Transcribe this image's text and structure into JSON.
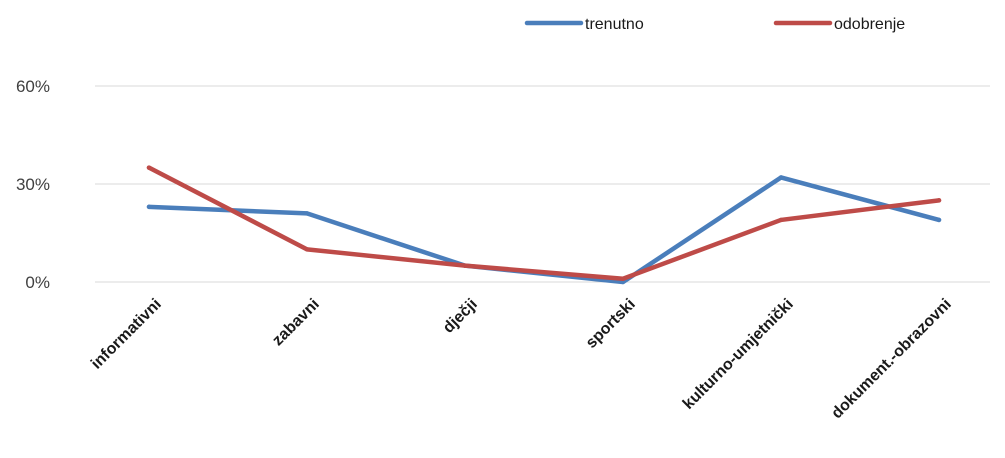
{
  "chart_data": {
    "type": "line",
    "title": "",
    "xlabel": "",
    "ylabel": "",
    "categories": [
      "informativni",
      "zabavni",
      "dječji",
      "sportski",
      "kulturno-umjetnički",
      "dokument.-obrazovni"
    ],
    "ylim": [
      0,
      60
    ],
    "y_ticks": [
      {
        "value": 0,
        "label": "0%"
      },
      {
        "value": 30,
        "label": "30%"
      },
      {
        "value": 60,
        "label": "60%"
      }
    ],
    "grid": true,
    "legend_position": "top-right",
    "series": [
      {
        "name": "trenutno",
        "color": "#4a7ebb",
        "values": [
          23,
          21,
          5,
          0,
          32,
          19
        ]
      },
      {
        "name": "odobrenje",
        "color": "#be4b48",
        "values": [
          35,
          10,
          5,
          1,
          19,
          25
        ]
      }
    ]
  }
}
